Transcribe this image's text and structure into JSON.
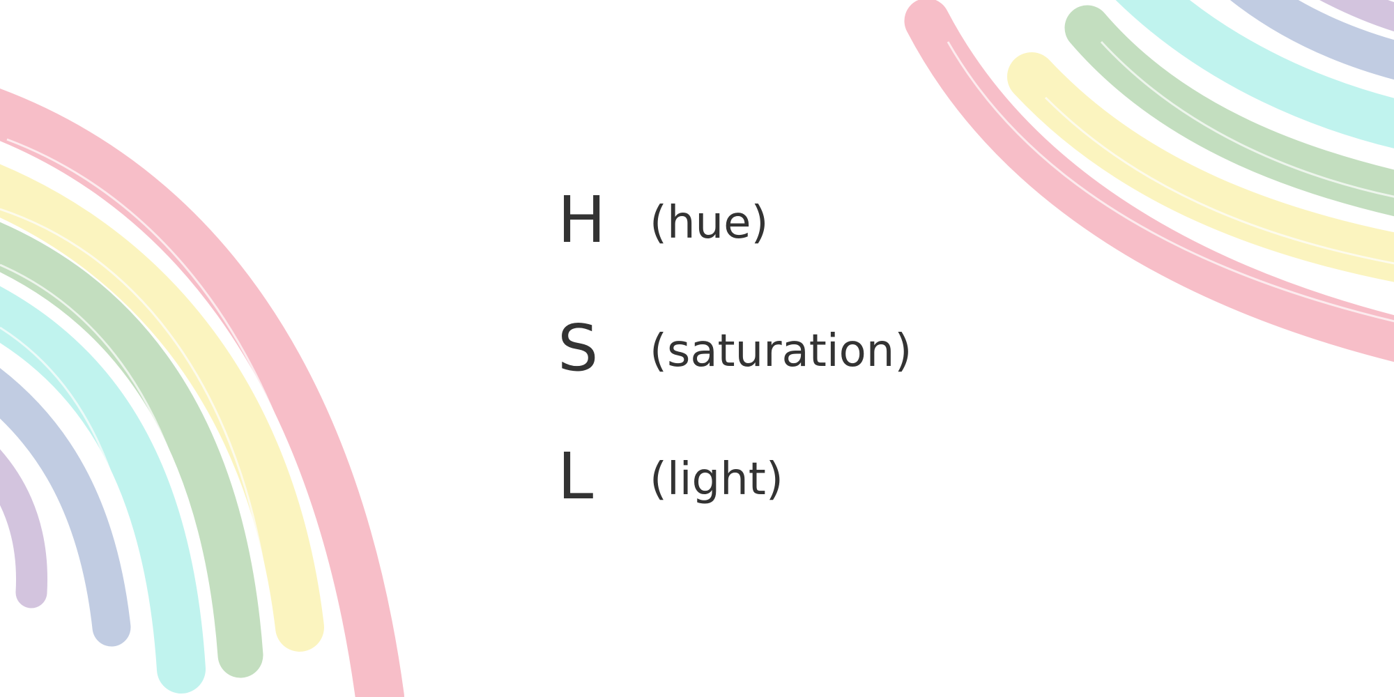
{
  "colors": {
    "background": "#ffffff",
    "text": "#333333",
    "stroke_red": "#f6b3bf",
    "stroke_yellow": "#fbf3b4",
    "stroke_green": "#b9d9b4",
    "stroke_cyan": "#b6f1ec",
    "stroke_blue": "#b7c4dd",
    "stroke_purple": "#ccbad9"
  },
  "items": [
    {
      "letter": "H",
      "description": "(hue)"
    },
    {
      "letter": "S",
      "description": "(saturation)"
    },
    {
      "letter": "L",
      "description": "(light)"
    }
  ]
}
